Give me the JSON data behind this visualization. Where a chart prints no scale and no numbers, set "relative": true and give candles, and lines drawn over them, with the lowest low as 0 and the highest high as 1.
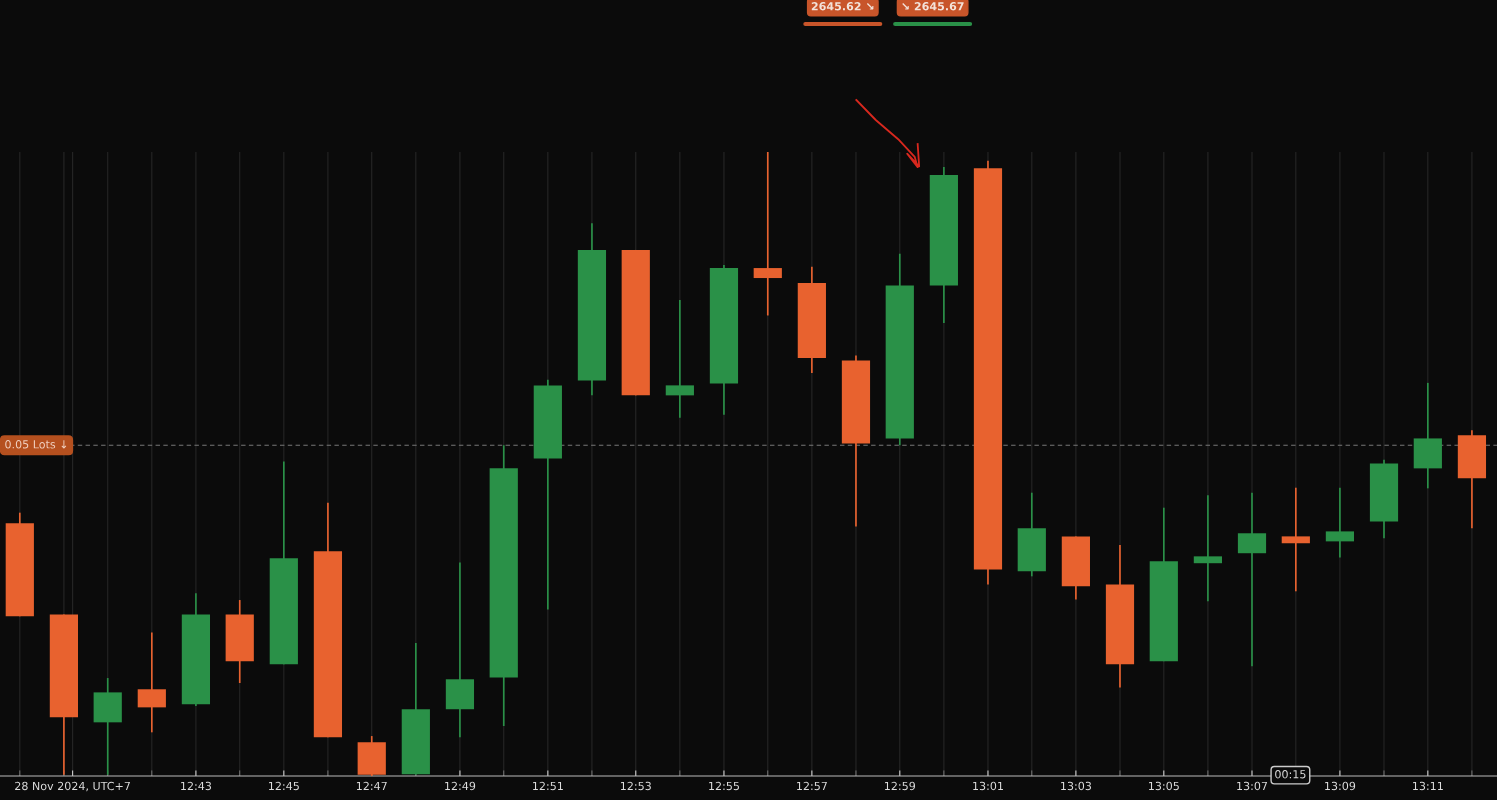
{
  "chart_data": {
    "type": "candlestick",
    "relative": true,
    "grid": true,
    "x": [
      12.65,
      12.6667,
      12.6833,
      12.7,
      12.7167,
      12.7333,
      12.75,
      12.7667,
      12.7833,
      12.8,
      12.8167,
      12.8333,
      12.85,
      12.8667,
      12.8833,
      12.9,
      12.9167,
      12.9333,
      12.95,
      12.9667,
      12.9833,
      13.0,
      13.0167,
      13.0333,
      13.05,
      13.0667,
      13.0833,
      13.1,
      13.1167,
      13.1333,
      13.15,
      13.1667,
      13.1833,
      13.2
    ],
    "ohlc": [
      [
        0.405,
        0.422,
        0.256,
        0.256
      ],
      [
        0.259,
        0.259,
        0.002,
        0.094
      ],
      [
        0.086,
        0.157,
        0.002,
        0.134
      ],
      [
        0.139,
        0.23,
        0.07,
        0.11
      ],
      [
        0.115,
        0.293,
        0.112,
        0.259
      ],
      [
        0.259,
        0.282,
        0.149,
        0.184
      ],
      [
        0.179,
        0.504,
        0.179,
        0.349
      ],
      [
        0.36,
        0.438,
        0.062,
        0.062
      ],
      [
        0.054,
        0.064,
        0.0,
        0.002
      ],
      [
        0.003,
        0.213,
        0.002,
        0.107
      ],
      [
        0.107,
        0.342,
        0.062,
        0.155
      ],
      [
        0.158,
        0.53,
        0.08,
        0.493
      ],
      [
        0.509,
        0.635,
        0.267,
        0.626
      ],
      [
        0.634,
        0.886,
        0.61,
        0.843
      ],
      [
        0.843,
        0.843,
        0.61,
        0.61
      ],
      [
        0.61,
        0.763,
        0.574,
        0.626
      ],
      [
        0.629,
        0.819,
        0.579,
        0.814
      ],
      [
        0.814,
        1.0,
        0.738,
        0.798
      ],
      [
        0.79,
        0.816,
        0.646,
        0.67
      ],
      [
        0.666,
        0.674,
        0.4,
        0.533
      ],
      [
        0.541,
        0.837,
        0.53,
        0.786
      ],
      [
        0.786,
        0.976,
        0.726,
        0.963
      ],
      [
        0.974,
        0.986,
        0.307,
        0.331
      ],
      [
        0.328,
        0.454,
        0.32,
        0.397
      ],
      [
        0.384,
        0.384,
        0.283,
        0.304
      ],
      [
        0.307,
        0.37,
        0.142,
        0.179
      ],
      [
        0.184,
        0.43,
        0.184,
        0.344
      ],
      [
        0.341,
        0.45,
        0.28,
        0.352
      ],
      [
        0.357,
        0.454,
        0.176,
        0.389
      ],
      [
        0.384,
        0.462,
        0.296,
        0.373
      ],
      [
        0.376,
        0.462,
        0.35,
        0.392
      ],
      [
        0.408,
        0.507,
        0.381,
        0.501
      ],
      [
        0.493,
        0.63,
        0.461,
        0.541
      ],
      [
        0.546,
        0.554,
        0.397,
        0.477
      ]
    ],
    "colors": [
      "#e8622f",
      "#e8622f",
      "#2a9148",
      "#e8622f",
      "#2a9148",
      "#e8622f",
      "#2a9148",
      "#e8622f",
      "#e8622f",
      "#2a9148",
      "#2a9148",
      "#2a9148",
      "#2a9148",
      "#2a9148",
      "#e8622f",
      "#2a9148",
      "#2a9148",
      "#e8622f",
      "#e8622f",
      "#e8622f",
      "#2a9148",
      "#2a9148",
      "#e8622f",
      "#2a9148",
      "#e8622f",
      "#e8622f",
      "#2a9148",
      "#2a9148",
      "#2a9148",
      "#e8622f",
      "#2a9148",
      "#2a9148",
      "#2a9148",
      "#e8622f"
    ],
    "xlim": [
      12.6425,
      13.2095
    ],
    "xticks": [
      {
        "value": 12.67,
        "label": "28 Nov 2024, UTC+7"
      },
      {
        "value": 12.7167,
        "label": "12:43"
      },
      {
        "value": 12.75,
        "label": "12:45"
      },
      {
        "value": 12.7833,
        "label": "12:47"
      },
      {
        "value": 12.8167,
        "label": "12:49"
      },
      {
        "value": 12.85,
        "label": "12:51"
      },
      {
        "value": 12.8833,
        "label": "12:53"
      },
      {
        "value": 12.9167,
        "label": "12:55"
      },
      {
        "value": 12.95,
        "label": "12:57"
      },
      {
        "value": 12.9833,
        "label": "12:59"
      },
      {
        "value": 13.0167,
        "label": "13:01"
      },
      {
        "value": 13.05,
        "label": "13:03"
      },
      {
        "value": 13.0833,
        "label": "13:05"
      },
      {
        "value": 13.1167,
        "label": "13:07"
      },
      {
        "value": 13.15,
        "label": "13:09"
      },
      {
        "value": 13.1833,
        "label": "13:11"
      }
    ],
    "ref_lines": [
      {
        "axis": "y",
        "value": 0.53,
        "label": "0.05 Lots ↓",
        "color": "#777777",
        "line_style": "dashed"
      }
    ],
    "annotations": [
      "2645.62 ↘",
      "↘ 2645.67",
      "00:15"
    ]
  }
}
